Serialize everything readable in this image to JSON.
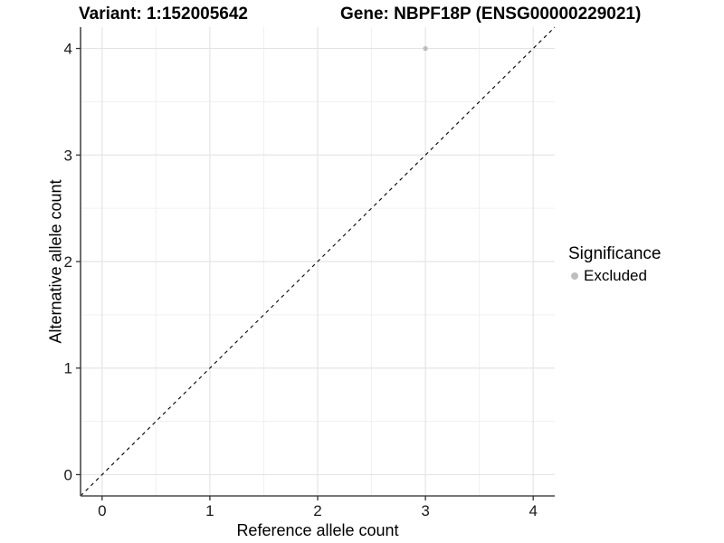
{
  "header": {
    "variant_title": "Variant: 1:152005642",
    "gene_title": "Gene: NBPF18P (ENSG00000229021)"
  },
  "chart_data": {
    "type": "scatter",
    "title_left": "Variant: 1:152005642",
    "title_right": "Gene: NBPF18P (ENSG00000229021)",
    "xlabel": "Reference allele count",
    "ylabel": "Alternative allele count",
    "xlim": [
      -0.2,
      4.2
    ],
    "ylim": [
      -0.2,
      4.2
    ],
    "x_major_ticks": [
      0,
      1,
      2,
      3,
      4
    ],
    "y_major_ticks": [
      0,
      1,
      2,
      3,
      4
    ],
    "x_minor_ticks": [
      0.5,
      1.5,
      2.5,
      3.5
    ],
    "y_minor_ticks": [
      0.5,
      1.5,
      2.5,
      3.5
    ],
    "grid": "major-and-minor",
    "series": [
      {
        "name": "Excluded",
        "marker": "circle",
        "color": "#bebebe",
        "points": [
          {
            "x": 3,
            "y": 4
          }
        ]
      }
    ],
    "identity_line": {
      "style": "dashed",
      "color": "#000000",
      "from": -0.2,
      "to": 4.2
    },
    "legend": {
      "position": "right",
      "title": "Significance",
      "entries": [
        {
          "label": "Excluded",
          "color": "#bebebe"
        }
      ]
    }
  },
  "colors": {
    "background": "#ffffff",
    "grid_major": "#e4e4e4",
    "grid_minor": "#f0f0f0",
    "axis_line": "#4a4a4a",
    "tick_mark": "#333333",
    "tick_label": "#1a1a1a",
    "text": "#000000"
  }
}
